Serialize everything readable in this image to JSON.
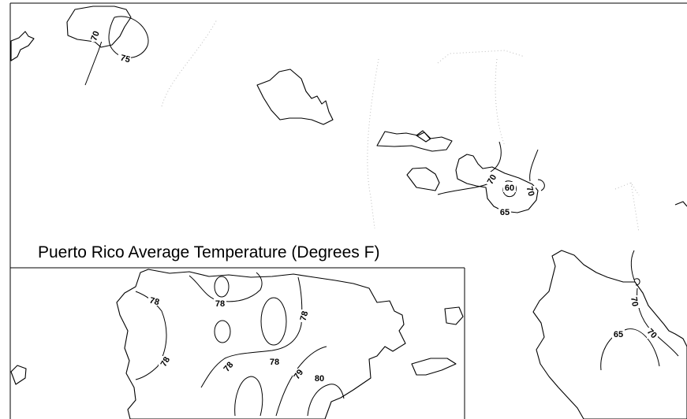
{
  "inset_title": "Puerto Rico Average Temperature (Degrees F)",
  "hawaii_labels": {
    "kauai_a": "70",
    "kauai_b": "75",
    "maui_a": "70",
    "maui_b": "60",
    "maui_c": "70",
    "maui_d": "65",
    "big_a": "70",
    "big_b": "65",
    "big_c": "70"
  },
  "pr_labels": {
    "w_a": "78",
    "w_b": "78",
    "n_a": "78",
    "c_a": "78",
    "c_b": "78",
    "c_c": "78",
    "se_a": "79",
    "se_b": "80"
  }
}
